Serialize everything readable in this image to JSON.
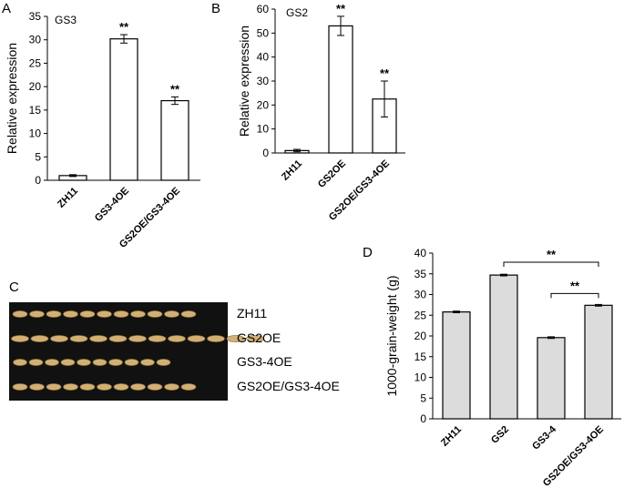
{
  "panel_letters": {
    "a": "A",
    "b": "B",
    "c": "C",
    "d": "D"
  },
  "significance_mark": "**",
  "chart_data": [
    {
      "type": "bar",
      "panel": "A",
      "inset_label": "GS3",
      "ylabel": "Relative expression",
      "xlabel": "",
      "categories": [
        "ZH11",
        "GS3-4OE",
        "GS2OE/GS3-4OE"
      ],
      "values": [
        1.0,
        30.2,
        17.0
      ],
      "errors": [
        0.2,
        0.9,
        0.8
      ],
      "significance": [
        "",
        "**",
        "**"
      ],
      "ylim": [
        0,
        35
      ],
      "yticks": [
        0,
        5,
        10,
        15,
        20,
        25,
        30,
        35
      ],
      "bar_color": "#ffffff",
      "grid": false
    },
    {
      "type": "bar",
      "panel": "B",
      "inset_label": "GS2",
      "ylabel": "Relative expression",
      "xlabel": "",
      "categories": [
        "ZH11",
        "GS2OE",
        "GS2OE/GS3-4OE"
      ],
      "values": [
        1.0,
        53.0,
        22.5
      ],
      "errors": [
        0.5,
        4.0,
        7.5
      ],
      "significance": [
        "",
        "**",
        "**"
      ],
      "ylim": [
        0,
        60
      ],
      "yticks": [
        0,
        10,
        20,
        30,
        40,
        50,
        60
      ],
      "bar_color": "#ffffff",
      "grid": false
    },
    {
      "type": "bar",
      "panel": "D",
      "inset_label": "",
      "ylabel": "1000-grain-weight (g)",
      "xlabel": "",
      "categories": [
        "ZH11",
        "GS2",
        "GS3-4",
        "GS2OE/GS3-4OE"
      ],
      "values": [
        25.8,
        34.7,
        19.6,
        27.4
      ],
      "errors": [
        0.2,
        0.2,
        0.2,
        0.2
      ],
      "significance": [
        "",
        "",
        "",
        ""
      ],
      "comparisons": [
        {
          "from": 1,
          "to": 3,
          "label": "**"
        },
        {
          "from": 2,
          "to": 3,
          "label": "**"
        }
      ],
      "ylim": [
        0,
        40
      ],
      "yticks": [
        0,
        5,
        10,
        15,
        20,
        25,
        30,
        35,
        40
      ],
      "bar_color": "#dcdcdc",
      "grid": false
    }
  ],
  "grain_panel": {
    "rows": [
      {
        "label": "ZH11",
        "grain_count": 11
      },
      {
        "label": "GS2OE",
        "grain_count": 13
      },
      {
        "label": "GS3-4OE",
        "grain_count": 10
      },
      {
        "label": "GS2OE/GS3-4OE",
        "grain_count": 11
      }
    ],
    "background_color": "#111111",
    "grain_color": "#d2b074"
  }
}
